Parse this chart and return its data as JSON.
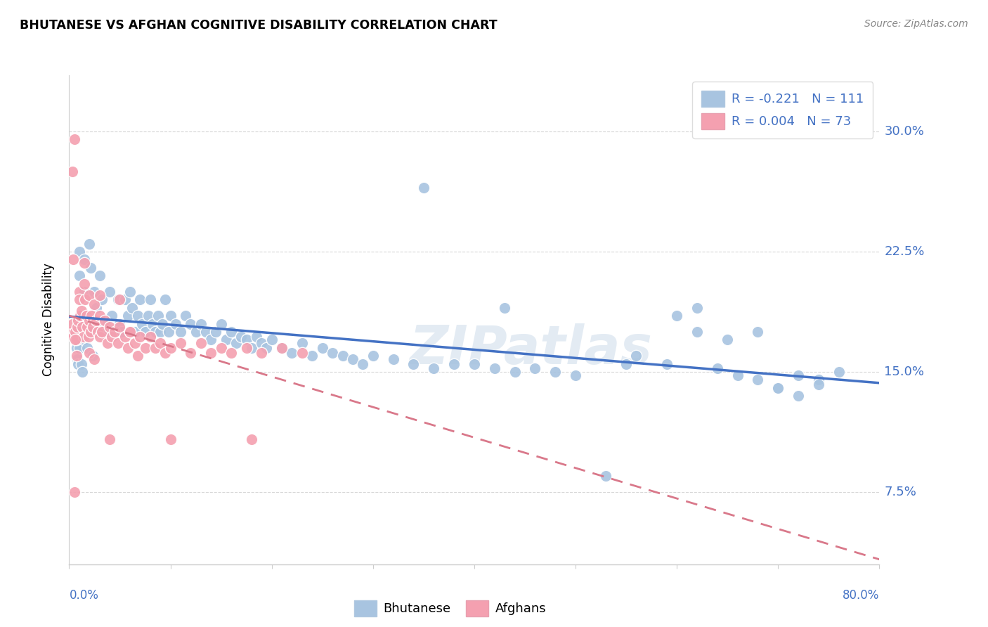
{
  "title": "BHUTANESE VS AFGHAN COGNITIVE DISABILITY CORRELATION CHART",
  "source": "Source: ZipAtlas.com",
  "ylabel": "Cognitive Disability",
  "yticks": [
    0.075,
    0.15,
    0.225,
    0.3
  ],
  "ytick_labels": [
    "7.5%",
    "15.0%",
    "22.5%",
    "30.0%"
  ],
  "xlim": [
    0.0,
    0.8
  ],
  "ylim": [
    0.03,
    0.335
  ],
  "bhutanese_color": "#a8c4e0",
  "afghan_color": "#f4a0b0",
  "bhutanese_R": -0.221,
  "bhutanese_N": 111,
  "afghan_R": 0.004,
  "afghan_N": 73,
  "bhutanese_line_color": "#4472c4",
  "afghan_line_color": "#d9788a",
  "legend_label_bhutanese": "Bhutanese",
  "legend_label_afghan": "Afghans",
  "watermark": "ZIPatlas",
  "bhutanese_x": [
    0.005,
    0.007,
    0.008,
    0.009,
    0.01,
    0.01,
    0.01,
    0.012,
    0.013,
    0.014,
    0.015,
    0.015,
    0.016,
    0.018,
    0.02,
    0.021,
    0.022,
    0.023,
    0.025,
    0.027,
    0.028,
    0.03,
    0.032,
    0.035,
    0.038,
    0.04,
    0.042,
    0.045,
    0.048,
    0.05,
    0.052,
    0.055,
    0.058,
    0.06,
    0.062,
    0.065,
    0.068,
    0.07,
    0.072,
    0.075,
    0.078,
    0.08,
    0.082,
    0.085,
    0.088,
    0.09,
    0.092,
    0.095,
    0.098,
    0.1,
    0.105,
    0.11,
    0.115,
    0.12,
    0.125,
    0.13,
    0.135,
    0.14,
    0.145,
    0.15,
    0.155,
    0.16,
    0.165,
    0.17,
    0.175,
    0.18,
    0.185,
    0.19,
    0.195,
    0.2,
    0.21,
    0.22,
    0.23,
    0.24,
    0.25,
    0.26,
    0.27,
    0.28,
    0.29,
    0.3,
    0.32,
    0.34,
    0.36,
    0.38,
    0.4,
    0.42,
    0.44,
    0.46,
    0.48,
    0.5,
    0.53,
    0.56,
    0.59,
    0.62,
    0.64,
    0.66,
    0.68,
    0.7,
    0.72,
    0.74,
    0.35,
    0.43,
    0.55,
    0.6,
    0.65,
    0.68,
    0.7,
    0.72,
    0.74,
    0.76,
    0.62
  ],
  "bhutanese_y": [
    0.175,
    0.165,
    0.158,
    0.155,
    0.225,
    0.21,
    0.165,
    0.155,
    0.15,
    0.17,
    0.22,
    0.2,
    0.185,
    0.165,
    0.23,
    0.215,
    0.175,
    0.16,
    0.2,
    0.19,
    0.175,
    0.21,
    0.195,
    0.18,
    0.175,
    0.2,
    0.185,
    0.175,
    0.195,
    0.18,
    0.175,
    0.195,
    0.185,
    0.2,
    0.19,
    0.175,
    0.185,
    0.195,
    0.18,
    0.175,
    0.185,
    0.195,
    0.18,
    0.175,
    0.185,
    0.175,
    0.18,
    0.195,
    0.175,
    0.185,
    0.18,
    0.175,
    0.185,
    0.18,
    0.175,
    0.18,
    0.175,
    0.17,
    0.175,
    0.18,
    0.17,
    0.175,
    0.168,
    0.172,
    0.17,
    0.165,
    0.172,
    0.168,
    0.165,
    0.17,
    0.165,
    0.162,
    0.168,
    0.16,
    0.165,
    0.162,
    0.16,
    0.158,
    0.155,
    0.16,
    0.158,
    0.155,
    0.152,
    0.155,
    0.155,
    0.152,
    0.15,
    0.152,
    0.15,
    0.148,
    0.085,
    0.16,
    0.155,
    0.175,
    0.152,
    0.148,
    0.175,
    0.14,
    0.135,
    0.145,
    0.265,
    0.19,
    0.155,
    0.185,
    0.17,
    0.145,
    0.14,
    0.148,
    0.142,
    0.15,
    0.19
  ],
  "afghan_x": [
    0.002,
    0.003,
    0.004,
    0.005,
    0.006,
    0.007,
    0.008,
    0.009,
    0.01,
    0.01,
    0.011,
    0.012,
    0.013,
    0.014,
    0.015,
    0.015,
    0.016,
    0.017,
    0.018,
    0.019,
    0.02,
    0.02,
    0.021,
    0.022,
    0.023,
    0.025,
    0.027,
    0.028,
    0.03,
    0.03,
    0.032,
    0.035,
    0.038,
    0.04,
    0.042,
    0.045,
    0.048,
    0.05,
    0.055,
    0.058,
    0.06,
    0.065,
    0.068,
    0.07,
    0.075,
    0.08,
    0.085,
    0.09,
    0.095,
    0.1,
    0.11,
    0.12,
    0.13,
    0.14,
    0.15,
    0.16,
    0.175,
    0.19,
    0.21,
    0.23,
    0.003,
    0.004,
    0.005,
    0.006,
    0.007,
    0.04,
    0.1,
    0.18,
    0.02,
    0.03,
    0.025,
    0.05,
    0.06
  ],
  "afghan_y": [
    0.175,
    0.18,
    0.172,
    0.295,
    0.175,
    0.17,
    0.178,
    0.182,
    0.2,
    0.195,
    0.185,
    0.188,
    0.178,
    0.172,
    0.218,
    0.205,
    0.195,
    0.185,
    0.178,
    0.172,
    0.198,
    0.182,
    0.175,
    0.185,
    0.178,
    0.192,
    0.182,
    0.175,
    0.185,
    0.172,
    0.175,
    0.182,
    0.168,
    0.178,
    0.172,
    0.175,
    0.168,
    0.178,
    0.172,
    0.165,
    0.175,
    0.168,
    0.16,
    0.172,
    0.165,
    0.172,
    0.165,
    0.168,
    0.162,
    0.165,
    0.168,
    0.162,
    0.168,
    0.162,
    0.165,
    0.162,
    0.165,
    0.162,
    0.165,
    0.162,
    0.275,
    0.22,
    0.075,
    0.17,
    0.16,
    0.108,
    0.108,
    0.108,
    0.162,
    0.198,
    0.158,
    0.195,
    0.175
  ]
}
